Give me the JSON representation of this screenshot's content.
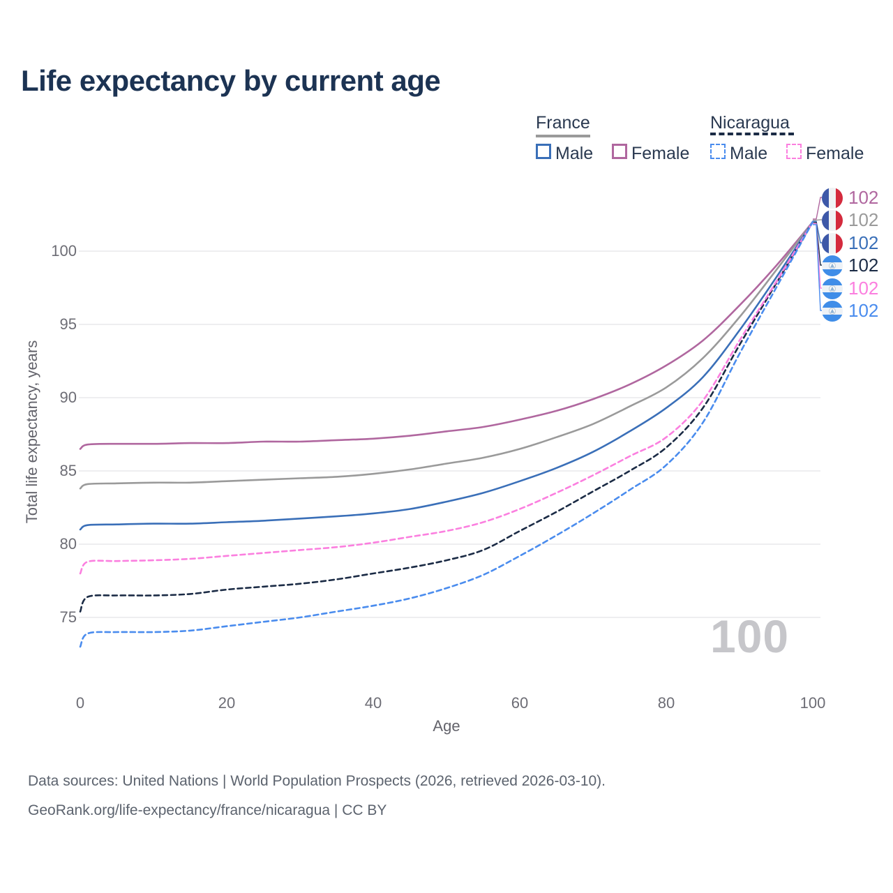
{
  "title": "Life expectancy by current age",
  "legend": {
    "groups": [
      {
        "country": "France",
        "items": [
          {
            "label": "Male"
          },
          {
            "label": "Female"
          }
        ]
      },
      {
        "country": "Nicaragua",
        "items": [
          {
            "label": "Male"
          },
          {
            "label": "Female"
          }
        ]
      }
    ]
  },
  "footer": {
    "line1": "Data sources: United Nations | World Population Prospects (2026, retrieved 2026-03-10).",
    "line2": "GeoRank.org/life-expectancy/france/nicaragua | CC BY"
  },
  "chart_data": {
    "type": "line",
    "title": "Life expectancy by current age",
    "xlabel": "Age",
    "ylabel": "Total life expectancy, years",
    "x_ticks": [
      0,
      20,
      40,
      60,
      80,
      100
    ],
    "y_ticks": [
      100,
      95,
      90,
      85,
      80,
      75
    ],
    "xlim": [
      0,
      100
    ],
    "ylim": [
      72,
      103
    ],
    "grid": "horizontal",
    "legend_position": "top-right",
    "frame_label": "100",
    "ages": [
      0,
      1,
      5,
      10,
      15,
      20,
      25,
      30,
      35,
      40,
      45,
      50,
      55,
      60,
      65,
      70,
      75,
      80,
      85,
      90,
      95,
      100
    ],
    "series": [
      {
        "id": "france-female",
        "name": "France Female",
        "country": "France",
        "sex": "Female",
        "color": "#b0679f",
        "dashed": false,
        "end_label": "102",
        "values": [
          86.5,
          86.8,
          86.85,
          86.85,
          86.9,
          86.9,
          87.0,
          87.0,
          87.1,
          87.2,
          87.4,
          87.7,
          88.0,
          88.5,
          89.1,
          89.9,
          90.9,
          92.2,
          93.9,
          96.3,
          99.0,
          102
        ]
      },
      {
        "id": "france-total",
        "name": "France Both sexes",
        "country": "France",
        "sex": "Both",
        "color": "#9a9a9a",
        "dashed": false,
        "end_label": "102",
        "values": [
          83.8,
          84.1,
          84.15,
          84.2,
          84.2,
          84.3,
          84.4,
          84.5,
          84.6,
          84.8,
          85.1,
          85.5,
          85.9,
          86.5,
          87.3,
          88.2,
          89.4,
          90.7,
          92.7,
          95.5,
          98.7,
          102
        ]
      },
      {
        "id": "france-male",
        "name": "France Male",
        "country": "France",
        "sex": "Male",
        "color": "#3a6fb8",
        "dashed": false,
        "end_label": "102",
        "values": [
          81.0,
          81.3,
          81.35,
          81.4,
          81.4,
          81.5,
          81.6,
          81.75,
          81.9,
          82.1,
          82.4,
          82.9,
          83.5,
          84.3,
          85.2,
          86.3,
          87.7,
          89.3,
          91.4,
          94.6,
          98.2,
          102
        ]
      },
      {
        "id": "nicaragua-total",
        "name": "Nicaragua Both sexes",
        "country": "Nicaragua",
        "sex": "Both",
        "color": "#1b2b45",
        "dashed": true,
        "end_label": "102",
        "values": [
          75.4,
          76.4,
          76.5,
          76.5,
          76.6,
          76.9,
          77.1,
          77.3,
          77.6,
          78.0,
          78.4,
          78.9,
          79.6,
          80.9,
          82.2,
          83.6,
          85.0,
          86.6,
          89.3,
          93.6,
          97.8,
          102
        ]
      },
      {
        "id": "nicaragua-female",
        "name": "Nicaragua Female",
        "country": "Nicaragua",
        "sex": "Female",
        "color": "#fb7fdf",
        "dashed": true,
        "end_label": "102",
        "values": [
          78.0,
          78.8,
          78.85,
          78.9,
          79.0,
          79.2,
          79.4,
          79.6,
          79.8,
          80.1,
          80.5,
          80.9,
          81.5,
          82.4,
          83.5,
          84.7,
          86.0,
          87.3,
          89.8,
          93.9,
          97.9,
          102
        ]
      },
      {
        "id": "nicaragua-male",
        "name": "Nicaragua Male",
        "country": "Nicaragua",
        "sex": "Male",
        "color": "#4a8cee",
        "dashed": true,
        "end_label": "102",
        "values": [
          73.0,
          73.9,
          74.0,
          74.0,
          74.1,
          74.4,
          74.7,
          75.0,
          75.4,
          75.8,
          76.3,
          77.0,
          77.9,
          79.2,
          80.6,
          82.1,
          83.7,
          85.4,
          88.3,
          93.0,
          97.5,
          102
        ]
      }
    ],
    "colors": {
      "title": "#1c3353",
      "gridline": "#e9e9ec",
      "tick_text": "#6d6d75",
      "watermark": "#c6c6ca"
    }
  }
}
